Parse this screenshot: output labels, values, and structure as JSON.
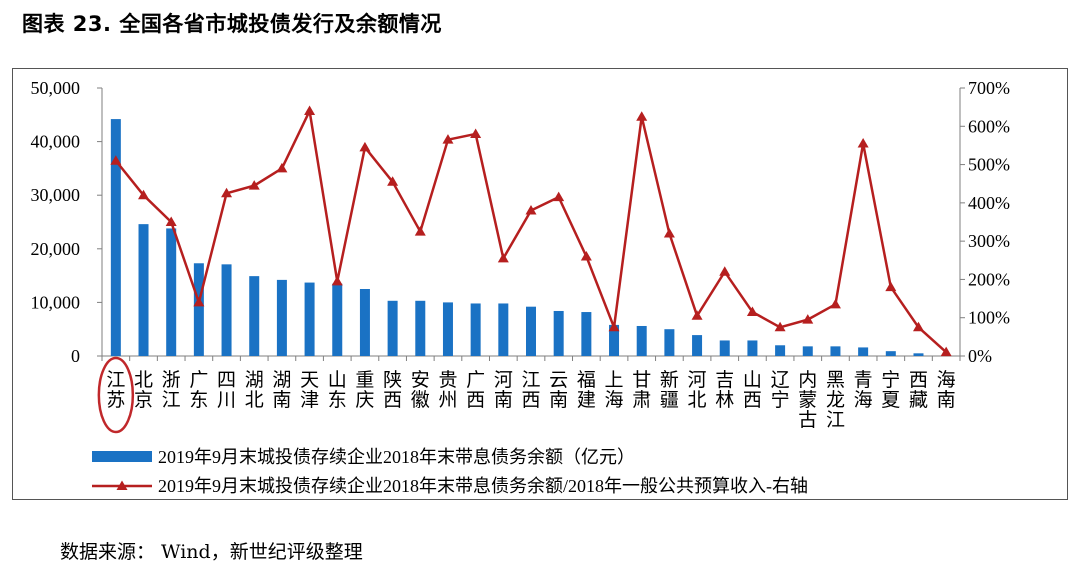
{
  "figure": {
    "title": "图表 23. 全国各省市城投债发行及余额情况",
    "source": "数据来源：  Wind，新世纪评级整理"
  },
  "colors": {
    "bar": "#1a72c4",
    "line": "#b61f1f",
    "highlight": "#c0282b",
    "axis": "#7f7f7f"
  },
  "chart_data": {
    "type": "bar",
    "categories": [
      "江苏",
      "北京",
      "浙江",
      "广东",
      "四川",
      "湖北",
      "湖南",
      "天津",
      "山东",
      "重庆",
      "陕西",
      "安徽",
      "贵州",
      "广西",
      "河南",
      "江西",
      "云南",
      "福建",
      "上海",
      "甘肃",
      "新疆",
      "河北",
      "吉林",
      "山西",
      "辽宁",
      "内蒙古",
      "黑龙江",
      "青海",
      "宁夏",
      "西藏",
      "海南"
    ],
    "highlighted_category": "江苏",
    "series": [
      {
        "name": "2019年9月末城投债存续企业2018年末带息债务余额（亿元）",
        "type": "bar",
        "axis": "left",
        "values": [
          44200,
          24600,
          23800,
          17300,
          17100,
          14900,
          14200,
          13700,
          13500,
          12500,
          10300,
          10300,
          10000,
          9800,
          9800,
          9200,
          8400,
          8200,
          5800,
          5600,
          5000,
          3900,
          2900,
          2900,
          2000,
          1800,
          1800,
          1600,
          900,
          500,
          0
        ]
      },
      {
        "name": "2019年9月末城投债存续企业2018年末带息债务余额/2018年一般公共预算收入-右轴",
        "type": "line",
        "axis": "right",
        "values": [
          510,
          420,
          350,
          140,
          425,
          445,
          490,
          640,
          195,
          545,
          455,
          325,
          565,
          580,
          255,
          380,
          415,
          260,
          75,
          625,
          320,
          105,
          220,
          115,
          75,
          95,
          135,
          555,
          180,
          75,
          10
        ]
      }
    ],
    "y_left": {
      "range": [
        0,
        50000
      ],
      "ticks": [
        "0",
        "10,000",
        "20,000",
        "30,000",
        "40,000",
        "50,000"
      ]
    },
    "y_right": {
      "range": [
        0,
        700
      ],
      "ticks": [
        "0%",
        "100%",
        "200%",
        "300%",
        "400%",
        "500%",
        "600%",
        "700%"
      ]
    },
    "legend": "bottom",
    "grid": false
  }
}
